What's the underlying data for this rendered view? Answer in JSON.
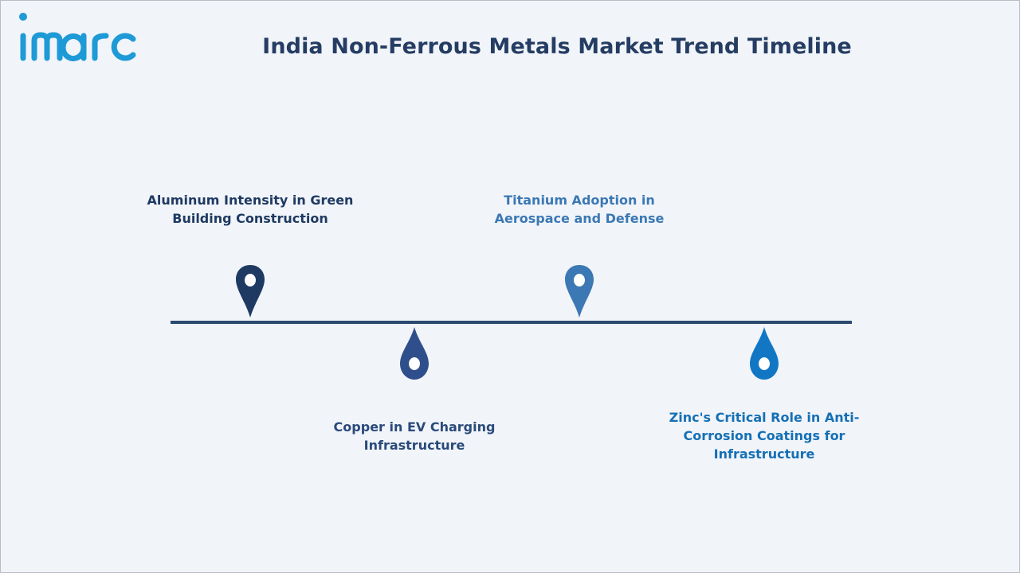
{
  "header": {
    "logo_text": "imarc",
    "title": "India Non-Ferrous Metals Market Trend Timeline"
  },
  "colors": {
    "background": "#f1f4f9",
    "title": "#253d63",
    "line": "#2a4a6e",
    "logo": "#1e9ad6"
  },
  "timeline": {
    "items": [
      {
        "lines": [
          "Aluminum Intensity in Green",
          "Building Construction"
        ],
        "color": "#1f3a62",
        "text_color": "#1f3a62",
        "pin_icon": "map-pin-icon"
      },
      {
        "lines": [
          "Copper in EV Charging",
          "Infrastructure"
        ],
        "color": "#2f4f8c",
        "text_color": "#2a4a7a",
        "pin_icon": "drop-pin-icon"
      },
      {
        "lines": [
          "Titanium Adoption in",
          "Aerospace and Defense"
        ],
        "color": "#3b78b4",
        "text_color": "#3b78b4",
        "pin_icon": "map-pin-icon"
      },
      {
        "lines": [
          "Zinc's Critical Role in Anti-",
          "Corrosion Coatings for",
          "Infrastructure"
        ],
        "color": "#1177c4",
        "text_color": "#1570b5",
        "pin_icon": "drop-pin-icon"
      }
    ]
  }
}
